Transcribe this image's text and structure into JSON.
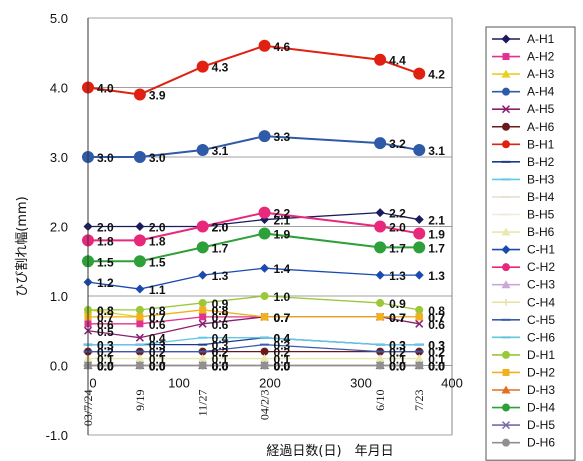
{
  "chart_data": {
    "type": "line",
    "ylabel": "ひび割れ幅(mm)",
    "xlabel": "経過日数(日)　年月日",
    "xlim": [
      0,
      400
    ],
    "ylim": [
      -1.0,
      5.0
    ],
    "xticks": [
      0,
      100,
      200,
      300,
      400
    ],
    "yticks": [
      -1.0,
      0.0,
      1.0,
      2.0,
      3.0,
      4.0,
      5.0
    ],
    "grid": "horizontal",
    "legend_position": "right",
    "x": [
      0,
      57,
      126,
      194,
      321,
      364
    ],
    "date_labels": [
      "03/7/24",
      "9/19",
      "11/27",
      "04/2/3",
      "6/10",
      "7/23"
    ],
    "series": [
      {
        "name": "A-H1",
        "color": "#1a1a5e",
        "marker": "diamond",
        "values": [
          2.0,
          2.0,
          2.0,
          2.1,
          2.2,
          2.1
        ]
      },
      {
        "name": "A-H2",
        "color": "#e0338f",
        "marker": "square",
        "values": [
          0.6,
          0.6,
          0.7,
          0.7,
          0.7,
          0.7
        ]
      },
      {
        "name": "A-H3",
        "color": "#e8d020",
        "marker": "triangle",
        "values": [
          0.8,
          0.7,
          0.8,
          0.7,
          0.7,
          0.7
        ]
      },
      {
        "name": "A-H4",
        "color": "#2e5aa8",
        "marker": "circle",
        "values": [
          3.0,
          3.0,
          3.1,
          3.3,
          3.2,
          3.1
        ]
      },
      {
        "name": "A-H5",
        "color": "#8a2070",
        "marker": "x",
        "values": [
          0.5,
          0.4,
          0.6,
          0.7,
          0.7,
          0.6
        ]
      },
      {
        "name": "A-H6",
        "color": "#6a1a1a",
        "marker": "circle",
        "values": [
          0.2,
          0.2,
          0.2,
          0.2,
          0.2,
          0.2
        ]
      },
      {
        "name": "B-H1",
        "color": "#e02010",
        "marker": "circle",
        "values": [
          4.0,
          3.9,
          4.3,
          4.6,
          4.4,
          4.2
        ]
      },
      {
        "name": "B-H2",
        "color": "#1a3a8a",
        "marker": "dash",
        "values": [
          0.3,
          0.3,
          0.3,
          0.4,
          0.3,
          0.3
        ]
      },
      {
        "name": "B-H3",
        "color": "#60c8e8",
        "marker": "dash",
        "values": [
          0.3,
          0.3,
          0.4,
          0.4,
          0.3,
          0.3
        ]
      },
      {
        "name": "B-H4",
        "color": "#e8e0d0",
        "marker": "dash",
        "values": [
          0.0,
          0.0,
          0.0,
          0.0,
          0.0,
          0.0
        ]
      },
      {
        "name": "B-H5",
        "color": "#f0ecd8",
        "marker": "dash",
        "values": [
          0.0,
          0.0,
          0.0,
          0.0,
          0.0,
          0.0
        ]
      },
      {
        "name": "B-H6",
        "color": "#e8e8b0",
        "marker": "triangle",
        "values": [
          0.1,
          0.1,
          0.1,
          0.1,
          0.1,
          0.1
        ]
      },
      {
        "name": "C-H1",
        "color": "#1a4ab0",
        "marker": "diamond",
        "values": [
          1.2,
          1.1,
          1.3,
          1.4,
          1.3,
          1.3
        ]
      },
      {
        "name": "C-H2",
        "color": "#e8287a",
        "marker": "circle",
        "values": [
          1.8,
          1.8,
          2.0,
          2.2,
          2.0,
          1.9
        ]
      },
      {
        "name": "C-H3",
        "color": "#c8a8d8",
        "marker": "triangle",
        "values": [
          0.0,
          0.0,
          0.0,
          0.0,
          0.0,
          0.0
        ]
      },
      {
        "name": "C-H4",
        "color": "#e8e0a0",
        "marker": "plus",
        "values": [
          0.0,
          0.0,
          0.0,
          0.0,
          0.0,
          0.0
        ]
      },
      {
        "name": "C-H5",
        "color": "#3a5ab0",
        "marker": "dash",
        "values": [
          0.2,
          0.2,
          0.2,
          0.3,
          0.2,
          0.2
        ]
      },
      {
        "name": "C-H6",
        "color": "#60c8d8",
        "marker": "dash",
        "values": [
          0.0,
          0.0,
          0.0,
          0.0,
          0.0,
          0.0
        ]
      },
      {
        "name": "D-H1",
        "color": "#9ac838",
        "marker": "circle",
        "values": [
          0.8,
          0.8,
          0.9,
          1.0,
          0.9,
          0.8
        ]
      },
      {
        "name": "D-H2",
        "color": "#f0b020",
        "marker": "square",
        "values": [
          0.7,
          0.7,
          0.8,
          0.7,
          0.7,
          0.7
        ]
      },
      {
        "name": "D-H3",
        "color": "#e07020",
        "marker": "triangle",
        "values": [
          0.0,
          0.0,
          0.0,
          0.0,
          0.0,
          0.0
        ]
      },
      {
        "name": "D-H4",
        "color": "#2ea03a",
        "marker": "circle",
        "values": [
          1.5,
          1.5,
          1.7,
          1.9,
          1.7,
          1.7
        ]
      },
      {
        "name": "D-H5",
        "color": "#7a6aa8",
        "marker": "x",
        "values": [
          0.0,
          0.0,
          0.0,
          0.0,
          0.0,
          0.0
        ]
      },
      {
        "name": "D-H6",
        "color": "#909090",
        "marker": "circle",
        "values": [
          0.0,
          0.0,
          0.0,
          0.0,
          0.0,
          0.0
        ]
      }
    ]
  }
}
